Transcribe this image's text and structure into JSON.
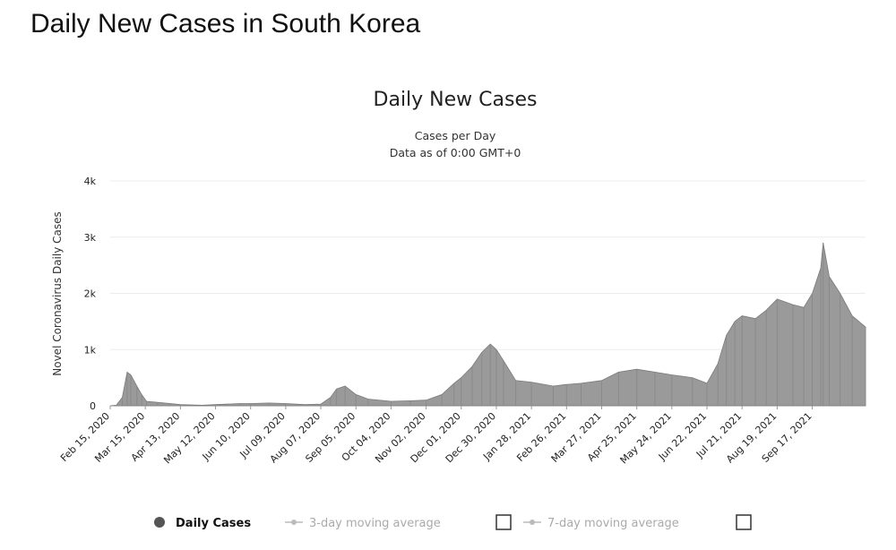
{
  "page": {
    "heading": "Daily New Cases in South Korea"
  },
  "chart_data": {
    "type": "bar",
    "title": "Daily New Cases",
    "subtitle": [
      "Cases per Day",
      "Data as of 0:00 GMT+0"
    ],
    "ylabel": "Novel Coronavirus Daily Cases",
    "xlabel": "",
    "ylim": [
      0,
      4000
    ],
    "y_ticks": [
      0,
      1000,
      2000,
      3000,
      4000
    ],
    "y_tick_labels": [
      "0",
      "1k",
      "2k",
      "3k",
      "4k"
    ],
    "x_start": "2020-02-15",
    "x_end": "2021-10-31",
    "x_tick_labels": [
      "Feb 15, 2020",
      "Mar 15, 2020",
      "Apr 13, 2020",
      "May 12, 2020",
      "Jun 10, 2020",
      "Jul 09, 2020",
      "Aug 07, 2020",
      "Sep 05, 2020",
      "Oct 04, 2020",
      "Nov 02, 2020",
      "Dec 01, 2020",
      "Dec 30, 2020",
      "Jan 28, 2021",
      "Feb 26, 2021",
      "Mar 27, 2021",
      "Apr 25, 2021",
      "May 24, 2021",
      "Jun 22, 2021",
      "Jul 21, 2021",
      "Aug 19, 2021",
      "Sep 17, 2021"
    ],
    "grid": "horizontal",
    "legend_position": "bottom",
    "series": [
      {
        "name": "Daily Cases",
        "color": "#9a9a9a",
        "x": [
          "2020-02-15",
          "2020-02-20",
          "2020-02-25",
          "2020-02-29",
          "2020-03-03",
          "2020-03-08",
          "2020-03-12",
          "2020-03-16",
          "2020-03-25",
          "2020-04-05",
          "2020-04-13",
          "2020-05-01",
          "2020-05-12",
          "2020-06-01",
          "2020-06-10",
          "2020-06-25",
          "2020-07-09",
          "2020-07-25",
          "2020-08-07",
          "2020-08-15",
          "2020-08-20",
          "2020-08-27",
          "2020-09-05",
          "2020-09-15",
          "2020-10-04",
          "2020-10-20",
          "2020-11-02",
          "2020-11-15",
          "2020-11-25",
          "2020-12-01",
          "2020-12-10",
          "2020-12-18",
          "2020-12-25",
          "2020-12-30",
          "2021-01-05",
          "2021-01-15",
          "2021-01-28",
          "2021-02-15",
          "2021-02-26",
          "2021-03-10",
          "2021-03-27",
          "2021-04-10",
          "2021-04-25",
          "2021-05-10",
          "2021-05-24",
          "2021-06-10",
          "2021-06-22",
          "2021-07-01",
          "2021-07-08",
          "2021-07-15",
          "2021-07-21",
          "2021-08-01",
          "2021-08-10",
          "2021-08-19",
          "2021-09-01",
          "2021-09-10",
          "2021-09-17",
          "2021-09-24",
          "2021-09-26",
          "2021-10-01",
          "2021-10-10",
          "2021-10-20",
          "2021-10-31"
        ],
        "values": [
          0,
          10,
          150,
          600,
          550,
          350,
          200,
          80,
          60,
          40,
          20,
          10,
          20,
          40,
          40,
          50,
          40,
          20,
          30,
          150,
          300,
          350,
          200,
          120,
          80,
          90,
          100,
          200,
          400,
          500,
          700,
          950,
          1100,
          1000,
          800,
          450,
          420,
          350,
          380,
          400,
          450,
          600,
          650,
          600,
          550,
          500,
          400,
          750,
          1250,
          1500,
          1600,
          1550,
          1700,
          1900,
          1800,
          1750,
          2000,
          2450,
          2900,
          2300,
          2000,
          1600,
          1400
        ]
      }
    ],
    "legend": [
      {
        "label": "Daily Cases",
        "color": "#555555"
      },
      {
        "label": "3-day moving average",
        "color": "#bbbbbb"
      },
      {
        "label": "7-day moving average",
        "color": "#bbbbbb"
      }
    ]
  }
}
